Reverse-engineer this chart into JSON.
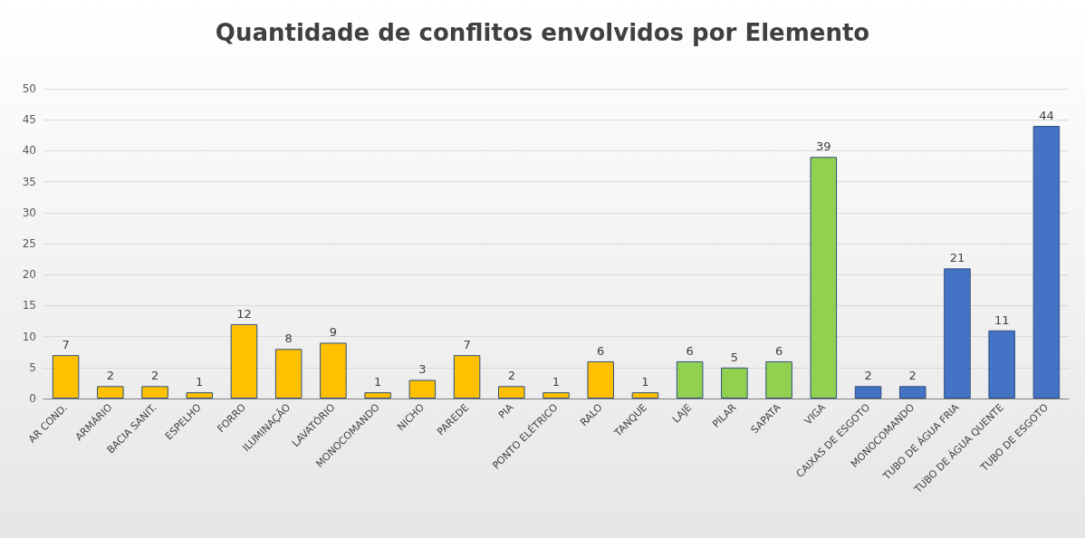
{
  "chart_data": {
    "type": "bar",
    "title": "Quantidade de conflitos envolvidos por Elemento",
    "categories": [
      "AR COND.",
      "ARMÁRIO",
      "BACIA SANIT.",
      "ESPELHO",
      "FORRO",
      "ILUMINAÇÃO",
      "LAVATÓRIO",
      "MONOCOMANDO",
      "NICHO",
      "PAREDE",
      "PIA",
      "PONTO ELÉTRICO",
      "RALO",
      "TANQUE",
      "LAJE",
      "PILAR",
      "SAPATA",
      "VIGA",
      "CAIXAS DE ESGOTO",
      "MONOCOMANDO",
      "TUBO DE ÁGUA FRIA",
      "TUBO DE ÁGUA QUENTE",
      "TUBO DE ESGOTO"
    ],
    "values": [
      7,
      2,
      2,
      1,
      12,
      8,
      9,
      1,
      3,
      7,
      2,
      1,
      6,
      1,
      6,
      5,
      6,
      39,
      2,
      2,
      21,
      11,
      44
    ],
    "colors": [
      "#ffc000",
      "#ffc000",
      "#ffc000",
      "#ffc000",
      "#ffc000",
      "#ffc000",
      "#ffc000",
      "#ffc000",
      "#ffc000",
      "#ffc000",
      "#ffc000",
      "#ffc000",
      "#ffc000",
      "#ffc000",
      "#92d050",
      "#92d050",
      "#92d050",
      "#92d050",
      "#4472c4",
      "#4472c4",
      "#4472c4",
      "#4472c4",
      "#4472c4"
    ],
    "ylim": [
      0,
      50
    ],
    "yticks": [
      0,
      5,
      10,
      15,
      20,
      25,
      30,
      35,
      40,
      45,
      50
    ],
    "grid": "y",
    "data_labels": true
  }
}
